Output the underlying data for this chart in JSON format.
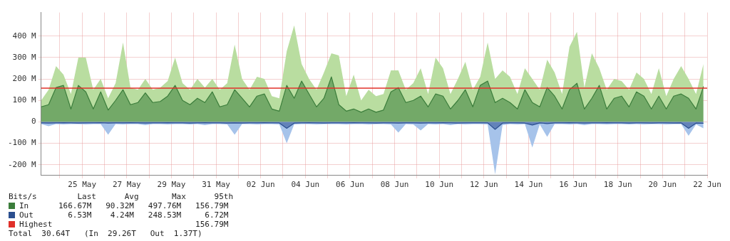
{
  "chart_data": {
    "type": "area",
    "x": [
      "--05-23T04:00",
      "--05-23T12:00",
      "--05-23T20:00",
      "--05-24T04:00",
      "--05-24T12:00",
      "--05-24T20:00",
      "--05-25T04:00",
      "--05-25T12:00",
      "--05-25T20:00",
      "--05-26T04:00",
      "--05-26T12:00",
      "--05-26T20:00",
      "--05-27T04:00",
      "--05-27T12:00",
      "--05-27T20:00",
      "--05-28T04:00",
      "--05-28T12:00",
      "--05-28T20:00",
      "--05-29T04:00",
      "--05-29T12:00",
      "--05-29T20:00",
      "--05-30T04:00",
      "--05-30T12:00",
      "--05-30T20:00",
      "--05-31T04:00",
      "--05-31T12:00",
      "--05-31T20:00",
      "--06-01T04:00",
      "--06-01T12:00",
      "--06-01T20:00",
      "--06-02T04:00",
      "--06-02T12:00",
      "--06-02T20:00",
      "--06-03T04:00",
      "--06-03T12:00",
      "--06-03T20:00",
      "--06-04T04:00",
      "--06-04T12:00",
      "--06-04T20:00",
      "--06-05T04:00",
      "--06-05T12:00",
      "--06-05T20:00",
      "--06-06T04:00",
      "--06-06T12:00",
      "--06-06T20:00",
      "--06-07T04:00",
      "--06-07T12:00",
      "--06-07T20:00",
      "--06-08T04:00",
      "--06-08T12:00",
      "--06-08T20:00",
      "--06-09T04:00",
      "--06-09T12:00",
      "--06-09T20:00",
      "--06-10T04:00",
      "--06-10T12:00",
      "--06-10T20:00",
      "--06-11T04:00",
      "--06-11T12:00",
      "--06-11T20:00",
      "--06-12T04:00",
      "--06-12T12:00",
      "--06-12T20:00",
      "--06-13T04:00",
      "--06-13T12:00",
      "--06-13T20:00",
      "--06-14T04:00",
      "--06-14T12:00",
      "--06-14T20:00",
      "--06-15T04:00",
      "--06-15T12:00",
      "--06-15T20:00",
      "--06-16T04:00",
      "--06-16T12:00",
      "--06-16T20:00",
      "--06-17T04:00",
      "--06-17T12:00",
      "--06-17T20:00",
      "--06-18T04:00",
      "--06-18T12:00",
      "--06-18T20:00",
      "--06-19T04:00",
      "--06-19T12:00",
      "--06-19T20:00",
      "--06-20T04:00",
      "--06-20T12:00",
      "--06-20T20:00",
      "--06-21T04:00",
      "--06-21T12:00",
      "--06-21T20:00"
    ],
    "series": [
      {
        "color": "#b9dda0",
        "values": [
          100,
          150,
          260,
          220,
          130,
          300,
          300,
          150,
          200,
          110,
          180,
          370,
          160,
          150,
          200,
          150,
          160,
          190,
          300,
          180,
          150,
          200,
          160,
          200,
          150,
          180,
          360,
          200,
          150,
          210,
          200,
          120,
          110,
          330,
          450,
          270,
          200,
          150,
          230,
          320,
          310,
          120,
          220,
          100,
          150,
          120,
          130,
          240,
          240,
          150,
          180,
          250,
          130,
          300,
          250,
          130,
          200,
          280,
          150,
          210,
          370,
          200,
          240,
          210,
          130,
          250,
          200,
          150,
          290,
          230,
          130,
          350,
          420,
          160,
          320,
          250,
          150,
          200,
          190,
          150,
          230,
          200,
          130,
          250,
          120,
          200,
          260,
          200,
          130,
          270
        ]
      },
      {
        "name": "In",
        "color": "#3b7d3b",
        "values": [
          70,
          80,
          160,
          170,
          60,
          170,
          140,
          60,
          140,
          55,
          100,
          150,
          80,
          90,
          135,
          90,
          95,
          120,
          170,
          100,
          80,
          110,
          90,
          140,
          70,
          80,
          150,
          110,
          70,
          120,
          130,
          60,
          50,
          170,
          110,
          190,
          130,
          70,
          110,
          210,
          80,
          50,
          60,
          45,
          60,
          45,
          55,
          140,
          160,
          90,
          100,
          120,
          70,
          130,
          120,
          60,
          100,
          150,
          70,
          170,
          190,
          90,
          110,
          90,
          60,
          150,
          90,
          70,
          160,
          120,
          60,
          150,
          180,
          60,
          110,
          170,
          60,
          110,
          120,
          70,
          140,
          120,
          60,
          120,
          60,
          120,
          130,
          110,
          60,
          165
        ]
      },
      {
        "color": "#a6c3ea",
        "values": [
          -10,
          -20,
          -10,
          -12,
          -10,
          -10,
          -12,
          -10,
          -10,
          -60,
          -10,
          -12,
          -10,
          -10,
          -15,
          -10,
          -10,
          -12,
          -10,
          -10,
          -12,
          -10,
          -15,
          -10,
          -10,
          -12,
          -60,
          -10,
          -10,
          -12,
          -10,
          -10,
          -12,
          -100,
          -12,
          -10,
          -10,
          -12,
          -10,
          -10,
          -10,
          -12,
          -10,
          -10,
          -12,
          -10,
          -10,
          -12,
          -50,
          -10,
          -12,
          -40,
          -10,
          -12,
          -10,
          -15,
          -10,
          -12,
          -10,
          -10,
          -12,
          -245,
          -15,
          -10,
          -12,
          -10,
          -120,
          -12,
          -70,
          -10,
          -10,
          -12,
          -10,
          -15,
          -10,
          -10,
          -12,
          -10,
          -10,
          -12,
          -10,
          -12,
          -10,
          -10,
          -12,
          -10,
          -10,
          -65,
          -12,
          -30
        ]
      },
      {
        "name": "Out",
        "color": "#2b4f8f",
        "values": [
          -5,
          -6,
          -5,
          -4,
          -5,
          -6,
          -5,
          -5,
          -4,
          -6,
          -5,
          -5,
          -4,
          -5,
          -6,
          -5,
          -5,
          -4,
          -5,
          -5,
          -6,
          -5,
          -4,
          -5,
          -5,
          -6,
          -5,
          -6,
          -5,
          -5,
          -4,
          -5,
          -5,
          -30,
          -6,
          -5,
          -4,
          -5,
          -6,
          -5,
          -5,
          -5,
          -4,
          -5,
          -5,
          -6,
          -5,
          -5,
          -6,
          -5,
          -5,
          -6,
          -5,
          -5,
          -4,
          -5,
          -6,
          -5,
          -5,
          -5,
          -5,
          -35,
          -6,
          -5,
          -5,
          -6,
          -15,
          -5,
          -8,
          -5,
          -5,
          -4,
          -5,
          -6,
          -5,
          -5,
          -4,
          -5,
          -5,
          -6,
          -5,
          -5,
          -6,
          -5,
          -5,
          -6,
          -5,
          -30,
          -6,
          -7
        ]
      }
    ],
    "ref_lines": [
      {
        "axis": "y",
        "value": 156.79,
        "label": "Highest",
        "color": "#e0302a"
      }
    ],
    "xlim": [
      "--05-23T04:00",
      "--06-22T00:00"
    ],
    "xticks": [
      {
        "value": "--05-24",
        "label": null
      },
      {
        "value": "--05-25",
        "label": "25 May"
      },
      {
        "value": "--05-26",
        "label": null
      },
      {
        "value": "--05-27",
        "label": "27 May"
      },
      {
        "value": "--05-28",
        "label": null
      },
      {
        "value": "--05-29",
        "label": "29 May"
      },
      {
        "value": "--05-30",
        "label": null
      },
      {
        "value": "--05-31",
        "label": "31 May"
      },
      {
        "value": "--06-01",
        "label": null
      },
      {
        "value": "--06-02",
        "label": "02 Jun"
      },
      {
        "value": "--06-03",
        "label": null
      },
      {
        "value": "--06-04",
        "label": "04 Jun"
      },
      {
        "value": "--06-05",
        "label": null
      },
      {
        "value": "--06-06",
        "label": "06 Jun"
      },
      {
        "value": "--06-07",
        "label": null
      },
      {
        "value": "--06-08",
        "label": "08 Jun"
      },
      {
        "value": "--06-09",
        "label": null
      },
      {
        "value": "--06-10",
        "label": "10 Jun"
      },
      {
        "value": "--06-11",
        "label": null
      },
      {
        "value": "--06-12",
        "label": "12 Jun"
      },
      {
        "value": "--06-13",
        "label": null
      },
      {
        "value": "--06-14",
        "label": "14 Jun"
      },
      {
        "value": "--06-15",
        "label": null
      },
      {
        "value": "--06-16",
        "label": "16 Jun"
      },
      {
        "value": "--06-17",
        "label": null
      },
      {
        "value": "--06-18",
        "label": "18 Jun"
      },
      {
        "value": "--06-19",
        "label": null
      },
      {
        "value": "--06-20",
        "label": "20 Jun"
      },
      {
        "value": "--06-21",
        "label": null
      },
      {
        "value": "--06-22",
        "label": "22 Jun"
      }
    ],
    "ylim": [
      -250,
      510
    ],
    "yticks": [
      {
        "value": -200,
        "label": "-200 M"
      },
      {
        "value": -100,
        "label": "-100 M"
      },
      0,
      {
        "value": 100,
        "label": "100 M"
      },
      {
        "value": 200,
        "label": "200 M"
      },
      {
        "value": 300,
        "label": "300 M"
      },
      {
        "value": 400,
        "label": "400 M"
      }
    ],
    "grid": true,
    "marker": "none",
    "legend": "bottom",
    "legend_title": "Bits/s",
    "annotations": [
      "    Last      Avg       Max      95th",
      "166.67M   90.32M   497.76M   156.79M",
      "  6.53M    4.24M   248.53M     6.72M",
      "                             156.79M",
      "Total  30.64T   (In  29.26T   Out  1.37T)"
    ]
  }
}
